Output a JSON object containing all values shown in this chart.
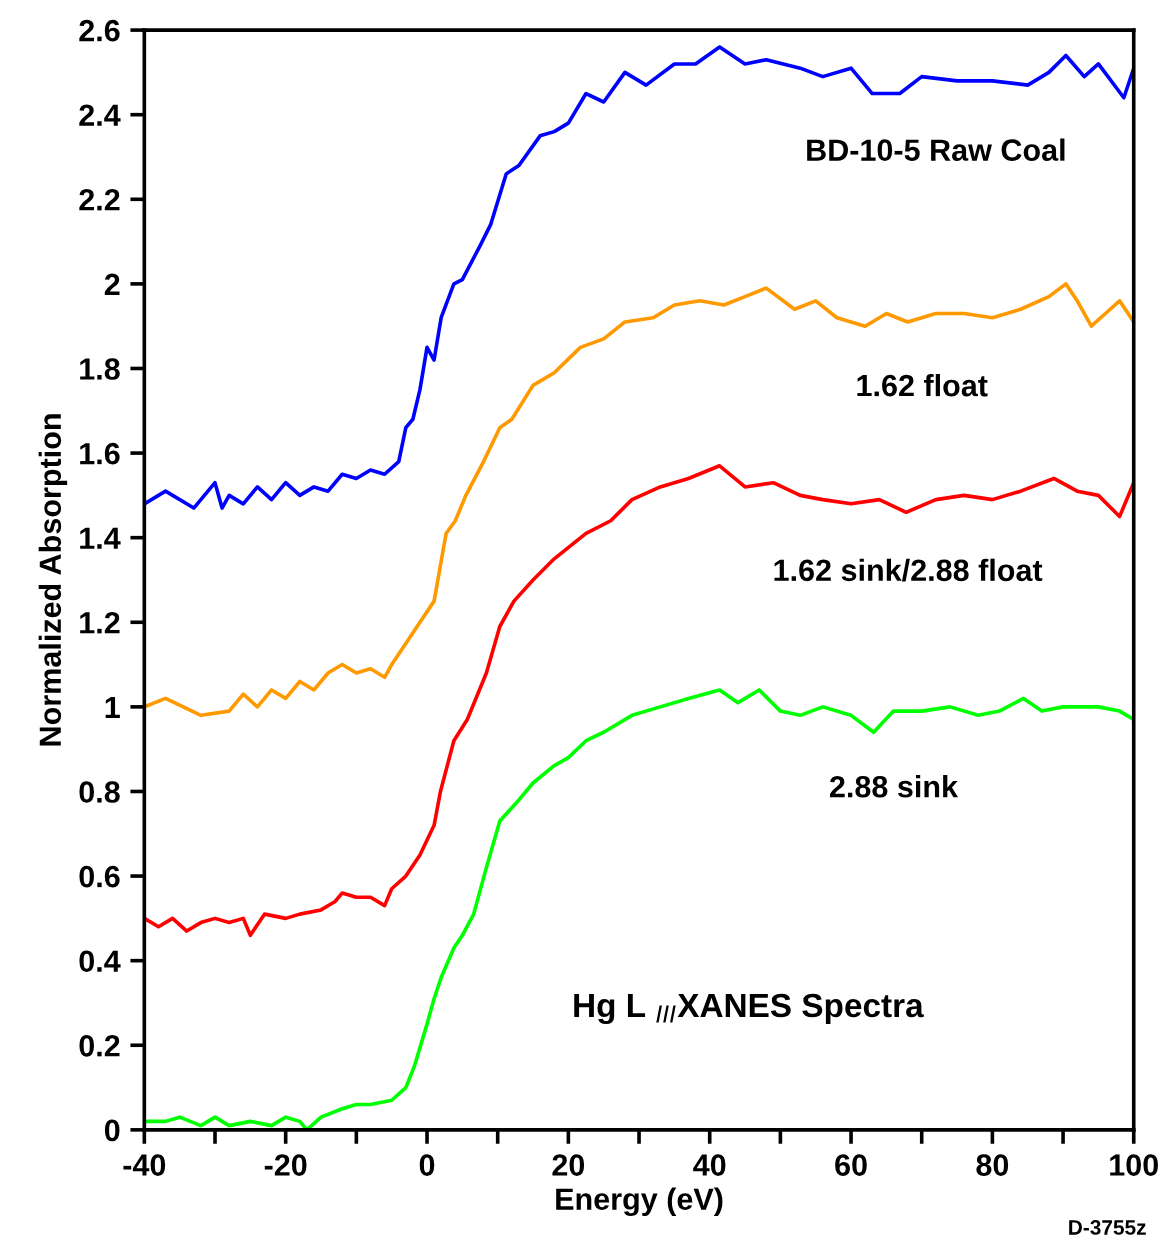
{
  "chart_data": {
    "type": "line",
    "xlabel": "Energy (eV)",
    "ylabel": "Normalized Absorption",
    "xlim": [
      -40,
      100
    ],
    "ylim": [
      0,
      2.6
    ],
    "xticks": [
      -40,
      {
        "value": -30,
        "label": null
      },
      -20,
      {
        "value": -10,
        "label": null
      },
      0,
      {
        "value": 10,
        "label": null
      },
      20,
      {
        "value": 30,
        "label": null
      },
      40,
      {
        "value": 50,
        "label": null
      },
      60,
      {
        "value": 70,
        "label": null
      },
      80,
      {
        "value": 90,
        "label": null
      },
      100
    ],
    "yticks": [
      0,
      0.2,
      0.4,
      0.6,
      0.8,
      1,
      1.2,
      1.4,
      1.6,
      1.8,
      2,
      2.2,
      2.4,
      2.6
    ],
    "grid": false,
    "legend": false,
    "marker": "none",
    "line_style": "solid",
    "annotations": [
      "Hg L $_{III}$XANES Spectra",
      "D-3755z"
    ],
    "series": [
      {
        "name": "BD-10-5 Raw Coal",
        "color": "#0000ff",
        "x": [
          -40,
          -37,
          -33,
          -30,
          -29,
          -28,
          -26,
          -24,
          -22,
          -20,
          -18,
          -16,
          -14,
          -12,
          -10,
          -8,
          -6,
          -4,
          -3,
          -2,
          -1,
          0,
          1,
          2,
          3.8,
          5,
          7.5,
          9,
          11.2,
          13,
          16,
          18,
          20,
          22.5,
          25,
          28,
          31,
          35,
          38,
          41.4,
          45,
          48,
          52.8,
          56,
          60,
          63,
          66.9,
          70,
          75,
          80,
          85,
          88,
          90.4,
          93,
          95,
          98.6,
          100
        ],
        "values": [
          1.48,
          1.51,
          1.47,
          1.53,
          1.47,
          1.5,
          1.48,
          1.52,
          1.49,
          1.53,
          1.5,
          1.52,
          1.51,
          1.55,
          1.54,
          1.56,
          1.55,
          1.58,
          1.66,
          1.68,
          1.75,
          1.85,
          1.82,
          1.92,
          2.0,
          2.01,
          2.09,
          2.14,
          2.26,
          2.28,
          2.35,
          2.36,
          2.38,
          2.45,
          2.43,
          2.5,
          2.47,
          2.52,
          2.52,
          2.56,
          2.52,
          2.53,
          2.51,
          2.49,
          2.51,
          2.45,
          2.45,
          2.49,
          2.48,
          2.48,
          2.47,
          2.5,
          2.54,
          2.49,
          2.52,
          2.44,
          2.51
        ]
      },
      {
        "name": "1.62 float",
        "color": "#ff9900",
        "x": [
          -40,
          -37,
          -32,
          -28,
          -26,
          -24,
          -22,
          -20,
          -18,
          -16,
          -14,
          -12,
          -10,
          -8,
          -6,
          -5,
          -3,
          -1,
          1,
          2.7,
          4,
          5.5,
          8,
          10.3,
          12,
          15,
          18,
          21.7,
          25,
          28,
          32,
          35,
          38.6,
          42,
          45,
          48,
          52,
          55,
          58,
          62,
          65,
          68,
          72,
          76,
          80,
          84,
          88,
          90.4,
          92,
          94,
          96,
          98,
          100
        ],
        "values": [
          1.0,
          1.02,
          0.98,
          0.99,
          1.03,
          1.0,
          1.04,
          1.02,
          1.06,
          1.04,
          1.08,
          1.1,
          1.08,
          1.09,
          1.07,
          1.1,
          1.15,
          1.2,
          1.25,
          1.41,
          1.44,
          1.5,
          1.58,
          1.66,
          1.68,
          1.76,
          1.79,
          1.85,
          1.87,
          1.91,
          1.92,
          1.95,
          1.96,
          1.95,
          1.97,
          1.99,
          1.94,
          1.96,
          1.92,
          1.9,
          1.93,
          1.91,
          1.93,
          1.93,
          1.92,
          1.94,
          1.97,
          2.0,
          1.96,
          1.9,
          1.93,
          1.96,
          1.91
        ]
      },
      {
        "name": "1.62 sink/2.88 float",
        "color": "#ff0000",
        "x": [
          -40,
          -38,
          -36,
          -34,
          -32,
          -30,
          -28,
          -26,
          -25,
          -23,
          -20,
          -18,
          -15,
          -13,
          -12,
          -10,
          -8,
          -6,
          -5,
          -3,
          -1,
          1,
          1.9,
          3.8,
          5.7,
          8.4,
          10.3,
          12.3,
          15,
          18,
          22.5,
          26,
          29,
          33,
          37,
          41.4,
          45,
          49,
          52.8,
          56,
          60,
          64,
          67.8,
          72,
          76,
          80,
          84,
          88.7,
          92,
          95,
          98,
          100
        ],
        "values": [
          0.5,
          0.48,
          0.5,
          0.47,
          0.49,
          0.5,
          0.49,
          0.5,
          0.46,
          0.51,
          0.5,
          0.51,
          0.52,
          0.54,
          0.56,
          0.55,
          0.55,
          0.53,
          0.57,
          0.6,
          0.65,
          0.72,
          0.8,
          0.92,
          0.97,
          1.08,
          1.19,
          1.25,
          1.3,
          1.35,
          1.41,
          1.44,
          1.49,
          1.52,
          1.54,
          1.57,
          1.52,
          1.53,
          1.5,
          1.49,
          1.48,
          1.49,
          1.46,
          1.49,
          1.5,
          1.49,
          1.51,
          1.54,
          1.51,
          1.5,
          1.45,
          1.53
        ]
      },
      {
        "name": "2.88 sink",
        "color": "#00ff00",
        "x": [
          -40,
          -37,
          -35,
          -32,
          -30,
          -28,
          -25,
          -22,
          -20,
          -18,
          -17,
          -15,
          -12,
          -10,
          -8,
          -5,
          -3,
          -1.8,
          0,
          1,
          2,
          3.8,
          5,
          6.6,
          8.4,
          10.3,
          13,
          15,
          17.9,
          20,
          22.5,
          25,
          29,
          33,
          37,
          41.4,
          44,
          47,
          50,
          52.8,
          56,
          60,
          63.2,
          66,
          70,
          74,
          78,
          81,
          84.4,
          87,
          90,
          95,
          98,
          100
        ],
        "values": [
          0.02,
          0.02,
          0.03,
          0.01,
          0.03,
          0.01,
          0.02,
          0.01,
          0.03,
          0.02,
          0.0,
          0.03,
          0.05,
          0.06,
          0.06,
          0.07,
          0.1,
          0.15,
          0.25,
          0.31,
          0.36,
          0.43,
          0.46,
          0.51,
          0.62,
          0.73,
          0.78,
          0.82,
          0.86,
          0.88,
          0.92,
          0.94,
          0.98,
          1.0,
          1.02,
          1.04,
          1.01,
          1.04,
          0.99,
          0.98,
          1.0,
          0.98,
          0.94,
          0.99,
          0.99,
          1.0,
          0.98,
          0.99,
          1.02,
          0.99,
          1.0,
          1.0,
          0.99,
          0.97
        ]
      }
    ]
  }
}
